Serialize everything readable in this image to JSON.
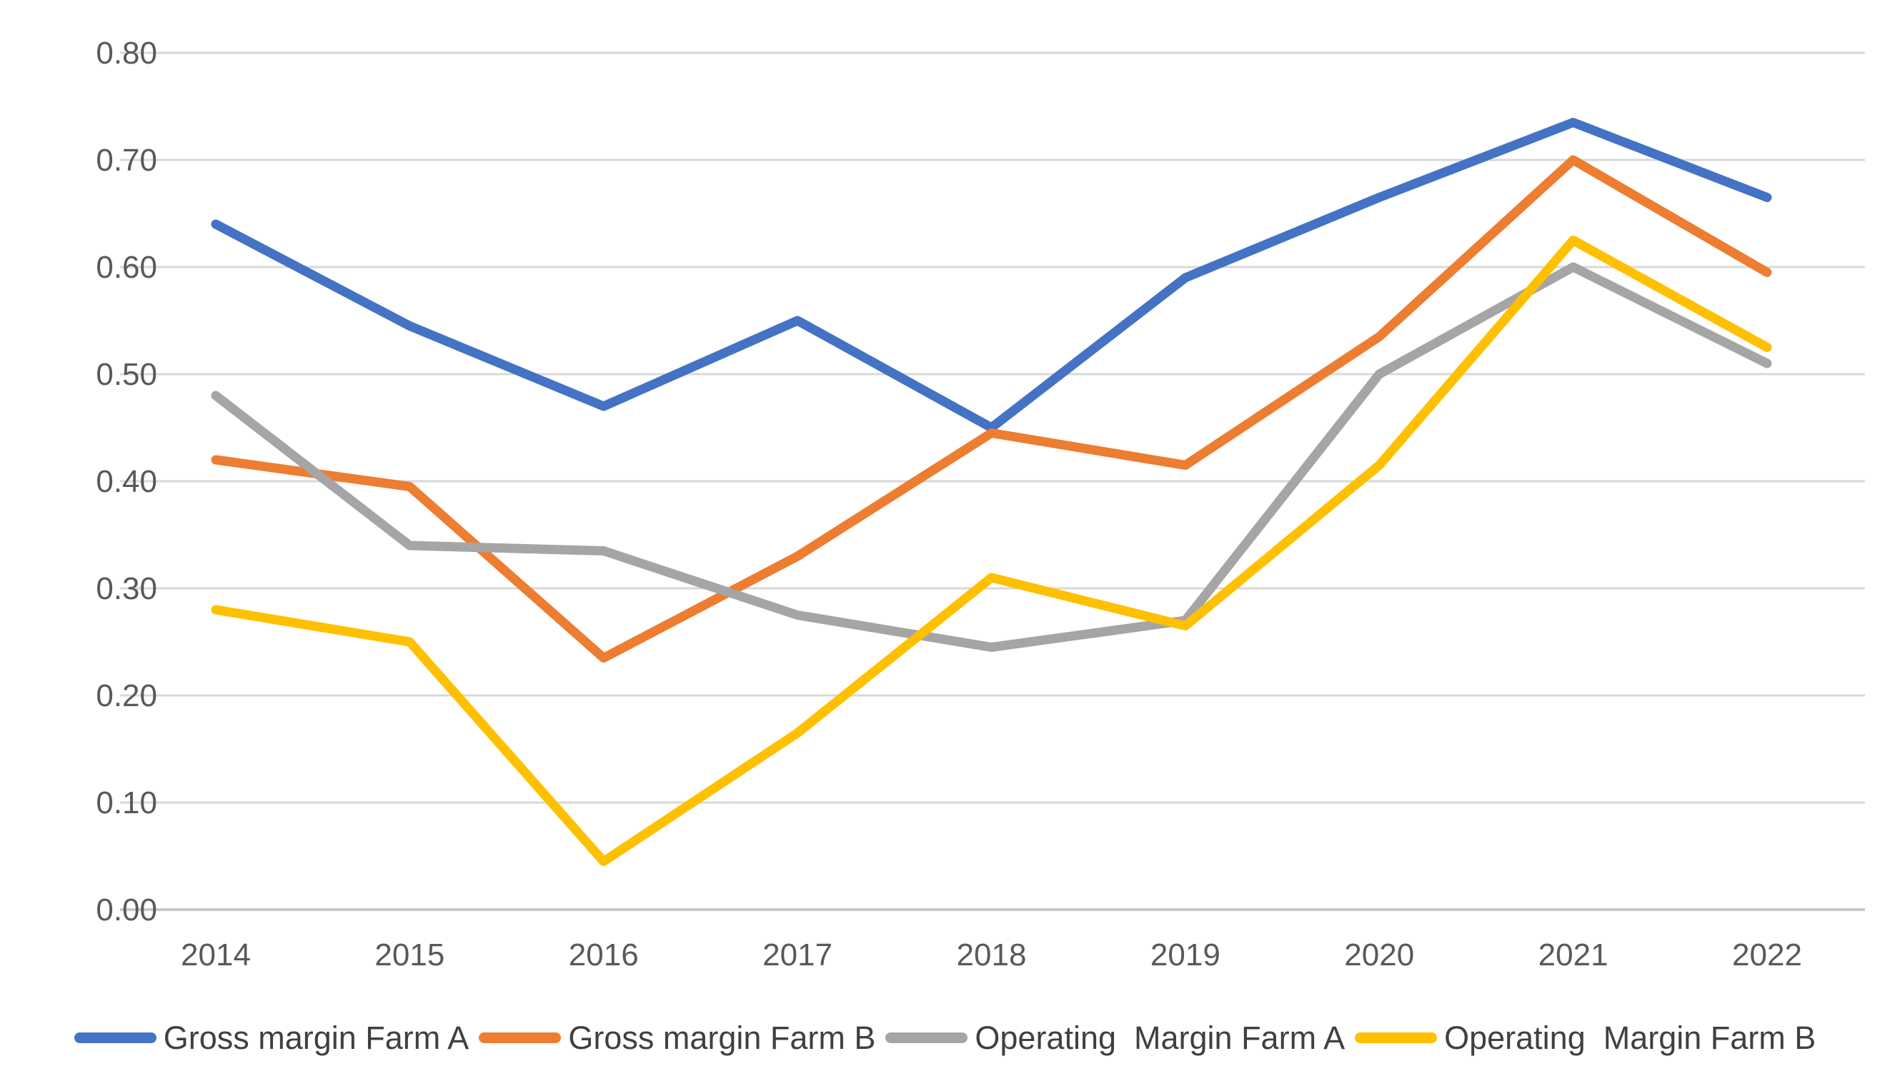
{
  "chart_data": {
    "type": "line",
    "title": "",
    "xlabel": "",
    "ylabel": "",
    "categories": [
      "2014",
      "2015",
      "2016",
      "2017",
      "2018",
      "2019",
      "2020",
      "2021",
      "2022"
    ],
    "series": [
      {
        "name": "Gross margin Farm A",
        "color": "#4472C4",
        "values": [
          0.64,
          0.545,
          0.47,
          0.55,
          0.45,
          0.59,
          0.665,
          0.735,
          0.665
        ]
      },
      {
        "name": "Gross margin Farm B",
        "color": "#ED7D31",
        "values": [
          0.42,
          0.395,
          0.235,
          0.33,
          0.445,
          0.415,
          0.535,
          0.7,
          0.595
        ]
      },
      {
        "name": "Operating  Margin Farm A",
        "color": "#A5A5A5",
        "values": [
          0.48,
          0.34,
          0.335,
          0.275,
          0.245,
          0.27,
          0.5,
          0.6,
          0.51
        ]
      },
      {
        "name": "Operating  Margin Farm B",
        "color": "#FFC000",
        "values": [
          0.28,
          0.25,
          0.045,
          0.165,
          0.31,
          0.265,
          0.415,
          0.625,
          0.525
        ]
      }
    ],
    "y_axis": {
      "min": 0.0,
      "max": 0.8,
      "tick_interval": 0.1,
      "tick_labels": [
        "0.00",
        "0.10",
        "0.20",
        "0.30",
        "0.40",
        "0.50",
        "0.60",
        "0.70",
        "0.80"
      ]
    },
    "grid": true,
    "legend_position": "bottom",
    "styles": {
      "gridline_color": "#D9D9D9",
      "baseline_color": "#C9C9C9",
      "axis_text_color": "#595959",
      "legend_text_color": "#404040",
      "background": "#FFFFFF",
      "line_width": 13
    }
  }
}
